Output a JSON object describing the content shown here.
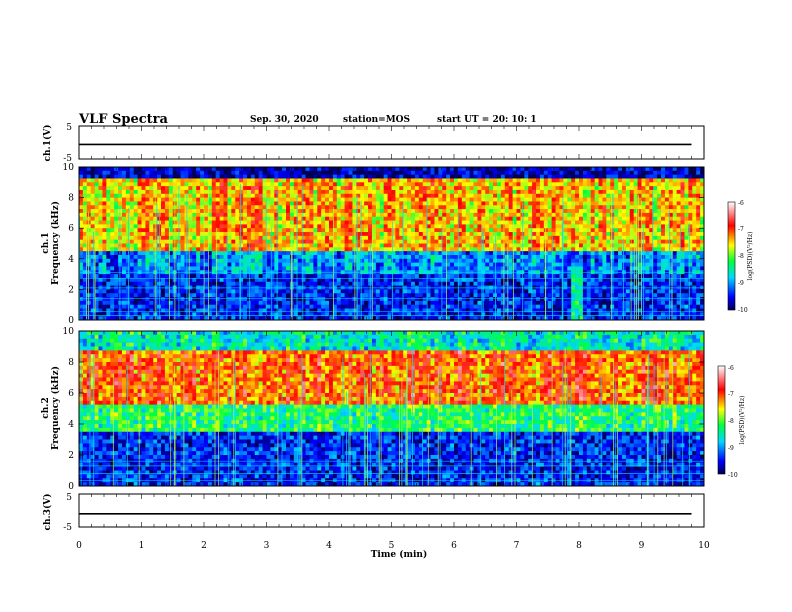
{
  "header": {
    "title": "VLF Spectra",
    "date": "Sep. 30, 2020",
    "station": "station=MOS",
    "start_ut": "start  UT  =   20: 10: 1"
  },
  "chart_data": [
    {
      "type": "line",
      "ylabel": "ch.1(V)",
      "ylim": [
        -5,
        5
      ],
      "yticks": [
        "5",
        "-5"
      ],
      "series": [
        {
          "x": [
            0,
            9.8
          ],
          "values": [
            -0.6,
            -0.6
          ]
        }
      ]
    },
    {
      "type": "heatmap",
      "ylabel_line1": "ch.1",
      "ylabel_line2": "Frequency  (kHz)",
      "ylim": [
        0,
        10
      ],
      "yticks": [
        "0",
        "2",
        "4",
        "6",
        "8",
        "10"
      ],
      "colorbar": {
        "label": "log(PSD)(V²/Hz)",
        "ticks": [
          "-6",
          "-7",
          "-8",
          "-9",
          "-10"
        ],
        "range": [
          -10,
          -6
        ]
      }
    },
    {
      "type": "heatmap",
      "ylabel_line1": "ch.2",
      "ylabel_line2": "Frequency  (kHz)",
      "ylim": [
        0,
        10
      ],
      "yticks": [
        "0",
        "2",
        "4",
        "6",
        "8",
        "10"
      ],
      "colorbar": {
        "label": "log(PSD)(V²/Hz)",
        "ticks": [
          "-6",
          "-7",
          "-8",
          "-9",
          "-10"
        ],
        "range": [
          -10,
          -6
        ]
      }
    },
    {
      "type": "line",
      "ylabel": "ch.3(V)",
      "ylim": [
        -5,
        5
      ],
      "yticks": [
        "5",
        "-5"
      ],
      "series": [
        {
          "x": [
            0,
            9.8
          ],
          "values": [
            -1.0,
            -1.0
          ]
        }
      ]
    }
  ],
  "xaxis": {
    "label": "Time  (min)",
    "range": [
      0,
      10
    ],
    "ticks": [
      "0",
      "1",
      "2",
      "3",
      "4",
      "5",
      "6",
      "7",
      "8",
      "9",
      "10"
    ]
  }
}
